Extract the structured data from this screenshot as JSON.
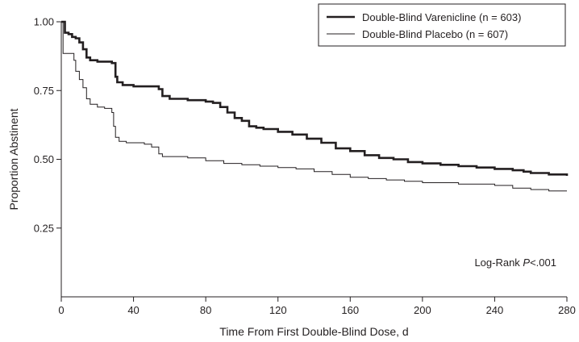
{
  "chart_data": {
    "type": "line",
    "title": "",
    "xlabel": "Time From First Double-Blind Dose, d",
    "ylabel": "Proportion Abstinent",
    "xlim": [
      0,
      280
    ],
    "ylim": [
      0,
      1.0
    ],
    "x_ticks": [
      0,
      40,
      80,
      120,
      160,
      200,
      240,
      280
    ],
    "y_ticks": [
      0.25,
      0.5,
      0.75,
      1.0
    ],
    "x_tick_labels": [
      "0",
      "40",
      "80",
      "120",
      "160",
      "200",
      "240",
      "280"
    ],
    "y_tick_labels": [
      "0.25",
      "0.50",
      "0.75",
      "1.00"
    ],
    "grid": false,
    "step": true,
    "legend_position": "top-right",
    "annotation_prefix": "Log-Rank ",
    "annotation_italic": "P",
    "annotation_suffix": "<.001",
    "series": [
      {
        "name": "Double-Blind Varenicline (n = 603)",
        "color": "#231f20",
        "line_style": "thick",
        "points": [
          [
            0,
            1.0
          ],
          [
            2,
            0.96
          ],
          [
            4,
            0.955
          ],
          [
            6,
            0.945
          ],
          [
            8,
            0.94
          ],
          [
            10,
            0.925
          ],
          [
            12,
            0.9
          ],
          [
            14,
            0.87
          ],
          [
            16,
            0.86
          ],
          [
            20,
            0.855
          ],
          [
            25,
            0.855
          ],
          [
            28,
            0.85
          ],
          [
            30,
            0.8
          ],
          [
            31,
            0.78
          ],
          [
            34,
            0.77
          ],
          [
            40,
            0.765
          ],
          [
            50,
            0.765
          ],
          [
            54,
            0.755
          ],
          [
            56,
            0.73
          ],
          [
            60,
            0.72
          ],
          [
            70,
            0.715
          ],
          [
            80,
            0.71
          ],
          [
            84,
            0.705
          ],
          [
            88,
            0.69
          ],
          [
            92,
            0.67
          ],
          [
            96,
            0.65
          ],
          [
            100,
            0.64
          ],
          [
            104,
            0.62
          ],
          [
            108,
            0.615
          ],
          [
            112,
            0.61
          ],
          [
            120,
            0.6
          ],
          [
            128,
            0.59
          ],
          [
            136,
            0.575
          ],
          [
            144,
            0.56
          ],
          [
            152,
            0.54
          ],
          [
            160,
            0.53
          ],
          [
            168,
            0.515
          ],
          [
            176,
            0.505
          ],
          [
            184,
            0.5
          ],
          [
            192,
            0.49
          ],
          [
            200,
            0.485
          ],
          [
            210,
            0.48
          ],
          [
            220,
            0.475
          ],
          [
            230,
            0.47
          ],
          [
            240,
            0.465
          ],
          [
            250,
            0.46
          ],
          [
            256,
            0.455
          ],
          [
            260,
            0.45
          ],
          [
            270,
            0.445
          ],
          [
            280,
            0.44
          ]
        ]
      },
      {
        "name": "Double-Blind Placebo (n = 607)",
        "color": "#231f20",
        "line_style": "thin",
        "points": [
          [
            0,
            1.0
          ],
          [
            1,
            0.885
          ],
          [
            6,
            0.885
          ],
          [
            7,
            0.86
          ],
          [
            8,
            0.82
          ],
          [
            10,
            0.79
          ],
          [
            12,
            0.76
          ],
          [
            14,
            0.72
          ],
          [
            16,
            0.7
          ],
          [
            20,
            0.69
          ],
          [
            24,
            0.685
          ],
          [
            28,
            0.67
          ],
          [
            29,
            0.62
          ],
          [
            30,
            0.58
          ],
          [
            32,
            0.565
          ],
          [
            36,
            0.56
          ],
          [
            46,
            0.555
          ],
          [
            50,
            0.545
          ],
          [
            54,
            0.52
          ],
          [
            56,
            0.51
          ],
          [
            70,
            0.505
          ],
          [
            80,
            0.495
          ],
          [
            90,
            0.485
          ],
          [
            100,
            0.48
          ],
          [
            110,
            0.475
          ],
          [
            120,
            0.47
          ],
          [
            130,
            0.465
          ],
          [
            140,
            0.455
          ],
          [
            150,
            0.445
          ],
          [
            160,
            0.435
          ],
          [
            170,
            0.43
          ],
          [
            180,
            0.425
          ],
          [
            190,
            0.42
          ],
          [
            200,
            0.415
          ],
          [
            220,
            0.41
          ],
          [
            240,
            0.405
          ],
          [
            250,
            0.395
          ],
          [
            260,
            0.39
          ],
          [
            270,
            0.385
          ],
          [
            280,
            0.385
          ]
        ]
      }
    ]
  }
}
